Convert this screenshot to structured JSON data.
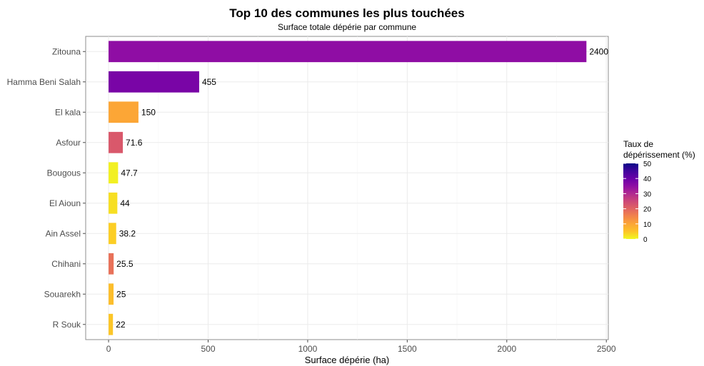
{
  "chart_data": {
    "type": "bar",
    "orientation": "horizontal",
    "title": "Top 10 des communes les plus touchées",
    "subtitle": "Surface totale dépérie par commune",
    "xlabel": "Surface dépérie (ha)",
    "ylabel": "",
    "xlim": [
      -115,
      2510
    ],
    "x_ticks": [
      0,
      500,
      1000,
      1500,
      2000,
      2500
    ],
    "grid": true,
    "categories": [
      "Zitouna",
      "Hamma Beni Salah",
      "El kala",
      "Asfour",
      "Bougous",
      "El Aioun",
      "Ain Assel",
      "Chihani",
      "Souarekh",
      "R Souk"
    ],
    "values": [
      2400,
      455,
      150,
      71.6,
      47.7,
      44,
      38.2,
      25.5,
      25,
      22
    ],
    "value_labels": [
      "2400",
      "455",
      "150",
      "71.6",
      "47.7",
      "44",
      "38.2",
      "25.5",
      "25",
      "22"
    ],
    "fill_rates": [
      35,
      38,
      10,
      22,
      1,
      3,
      5,
      18,
      7,
      6
    ],
    "legend": {
      "title_lines": [
        "Taux de",
        "dépérissement (%)"
      ],
      "ticks": [
        0,
        10,
        20,
        30,
        40,
        50
      ],
      "placement": "right",
      "colorscale": "plasma"
    }
  }
}
